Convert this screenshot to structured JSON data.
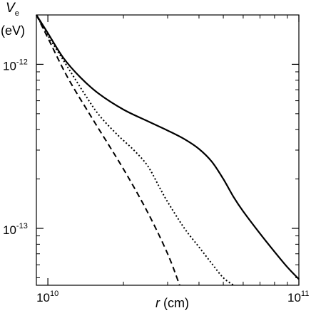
{
  "chart_data": {
    "type": "line",
    "title": "",
    "ylabel": {
      "symbol": "V",
      "subscript": "e",
      "unit": "(eV)"
    },
    "xlabel": {
      "symbol": "r",
      "unit": "(cm)"
    },
    "x_scale": "log",
    "y_scale": "log",
    "xlim": [
      9000000000.0,
      100000000000.0
    ],
    "ylim": [
      4.5e-14,
      2e-12
    ],
    "x_ticks": [
      {
        "value": 10000000000.0,
        "base": "10",
        "exp": "10"
      },
      {
        "value": 100000000000.0,
        "base": "10",
        "exp": "11"
      }
    ],
    "y_ticks": [
      {
        "value": 1e-12,
        "base": "10",
        "exp": "-12"
      },
      {
        "value": 1e-13,
        "base": "10",
        "exp": "-13"
      }
    ],
    "legend": "none",
    "grid": false,
    "series": [
      {
        "style": "solid",
        "x": [
          9000000000.0,
          10000000000.0,
          11500000000.0,
          13500000000.0,
          16000000000.0,
          20000000000.0,
          25000000000.0,
          30000000000.0,
          35000000000.0,
          40000000000.0,
          45000000000.0,
          50000000000.0,
          55000000000.0,
          60000000000.0,
          70000000000.0,
          80000000000.0,
          90000000000.0,
          100000000000.0
        ],
        "y": [
          2e-12,
          1.55e-12,
          1.1e-12,
          8.3e-13,
          6.6e-13,
          5.3e-13,
          4.5e-13,
          3.95e-13,
          3.5e-13,
          3.05e-13,
          2.55e-13,
          2e-13,
          1.55e-13,
          1.27e-13,
          9.3e-14,
          7.2e-14,
          5.8e-14,
          4.9e-14
        ]
      },
      {
        "style": "dotted",
        "x": [
          9000000000.0,
          10000000000.0,
          12000000000.0,
          14000000000.0,
          16000000000.0,
          19000000000.0,
          22000000000.0,
          25000000000.0,
          28000000000.0,
          30000000000.0,
          35000000000.0,
          40000000000.0,
          45000000000.0,
          50000000000.0,
          55000000000.0
        ],
        "y": [
          2e-12,
          1.5e-12,
          9.6e-13,
          6.6e-13,
          4.9e-13,
          3.7e-13,
          3e-13,
          2.4e-13,
          1.75e-13,
          1.45e-13,
          1e-13,
          7.7e-14,
          6.1e-14,
          5e-14,
          4.5e-14
        ]
      },
      {
        "style": "dashed",
        "x": [
          9000000000.0,
          10000000000.0,
          12000000000.0,
          15000000000.0,
          20000000000.0,
          25000000000.0,
          30000000000.0,
          33500000000.0
        ],
        "y": [
          2e-12,
          1.45e-12,
          8.3e-13,
          4.7e-13,
          2.3e-13,
          1.25e-13,
          7e-14,
          4.5e-14
        ]
      }
    ]
  }
}
